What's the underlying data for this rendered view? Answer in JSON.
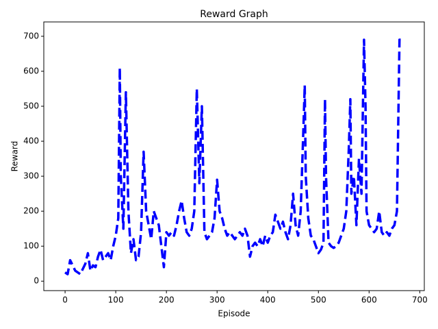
{
  "chart_data": {
    "type": "line",
    "title": "Reward Graph",
    "x_label": "Episode",
    "y_label": "Reward",
    "color": "#0000ff",
    "line_style": "dashed",
    "x": [
      0,
      5,
      10,
      15,
      20,
      25,
      30,
      35,
      40,
      45,
      50,
      55,
      60,
      65,
      70,
      75,
      80,
      85,
      90,
      95,
      100,
      105,
      108,
      110,
      115,
      120,
      125,
      130,
      135,
      140,
      145,
      150,
      155,
      160,
      165,
      170,
      175,
      180,
      185,
      190,
      195,
      200,
      205,
      210,
      215,
      220,
      225,
      230,
      235,
      240,
      245,
      250,
      255,
      260,
      265,
      270,
      275,
      280,
      285,
      290,
      295,
      300,
      305,
      310,
      315,
      320,
      325,
      330,
      335,
      340,
      345,
      350,
      355,
      360,
      365,
      370,
      375,
      380,
      385,
      390,
      395,
      400,
      405,
      410,
      415,
      420,
      425,
      430,
      435,
      440,
      445,
      450,
      455,
      460,
      465,
      470,
      473,
      475,
      480,
      485,
      490,
      495,
      500,
      505,
      510,
      513,
      515,
      520,
      525,
      530,
      535,
      540,
      545,
      550,
      555,
      560,
      563,
      565,
      570,
      575,
      580,
      585,
      590,
      593,
      595,
      600,
      605,
      610,
      615,
      620,
      625,
      630,
      635,
      640,
      645,
      650,
      655,
      660,
      664
    ],
    "values": [
      25,
      20,
      60,
      45,
      30,
      25,
      20,
      35,
      50,
      80,
      30,
      45,
      40,
      70,
      90,
      60,
      70,
      80,
      60,
      100,
      130,
      180,
      610,
      300,
      150,
      540,
      200,
      80,
      120,
      60,
      70,
      140,
      370,
      200,
      160,
      120,
      200,
      180,
      160,
      100,
      40,
      140,
      130,
      140,
      130,
      160,
      200,
      230,
      180,
      140,
      130,
      150,
      200,
      550,
      280,
      500,
      140,
      120,
      130,
      140,
      180,
      290,
      200,
      180,
      150,
      130,
      140,
      130,
      120,
      130,
      140,
      130,
      150,
      130,
      70,
      100,
      110,
      100,
      120,
      100,
      130,
      110,
      130,
      140,
      190,
      170,
      150,
      170,
      140,
      120,
      160,
      250,
      160,
      130,
      200,
      420,
      560,
      300,
      180,
      130,
      120,
      100,
      80,
      90,
      110,
      520,
      300,
      110,
      100,
      95,
      100,
      110,
      130,
      150,
      200,
      380,
      520,
      250,
      300,
      160,
      350,
      250,
      690,
      500,
      200,
      160,
      150,
      140,
      150,
      200,
      140,
      130,
      140,
      130,
      150,
      160,
      200,
      690,
      690
    ],
    "xlim": [
      -42,
      709
    ],
    "ylim": [
      -27,
      741
    ],
    "xticks": [
      0,
      100,
      200,
      300,
      400,
      500,
      600,
      700
    ],
    "yticks": [
      0,
      100,
      200,
      300,
      400,
      500,
      600,
      700
    ]
  }
}
